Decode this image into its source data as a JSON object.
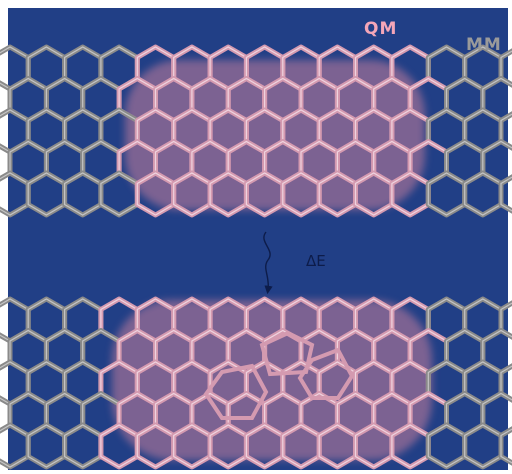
{
  "labels": {
    "qm": "QM",
    "mm": "MM",
    "delta_e": "ΔE"
  },
  "colors": {
    "background": "#213f86",
    "qm_text": "#f4a6b8",
    "mm_text": "#9a9a9a",
    "delta_e_text": "#0d1c4a",
    "bond_gray": "#8a8a8a",
    "bond_pink": "#d49ab0",
    "cloud_pink": "#c77f9c",
    "arrow": "#0d1c4a"
  },
  "icons": {
    "transition_arrow": "squiggle-down-arrow-icon"
  }
}
